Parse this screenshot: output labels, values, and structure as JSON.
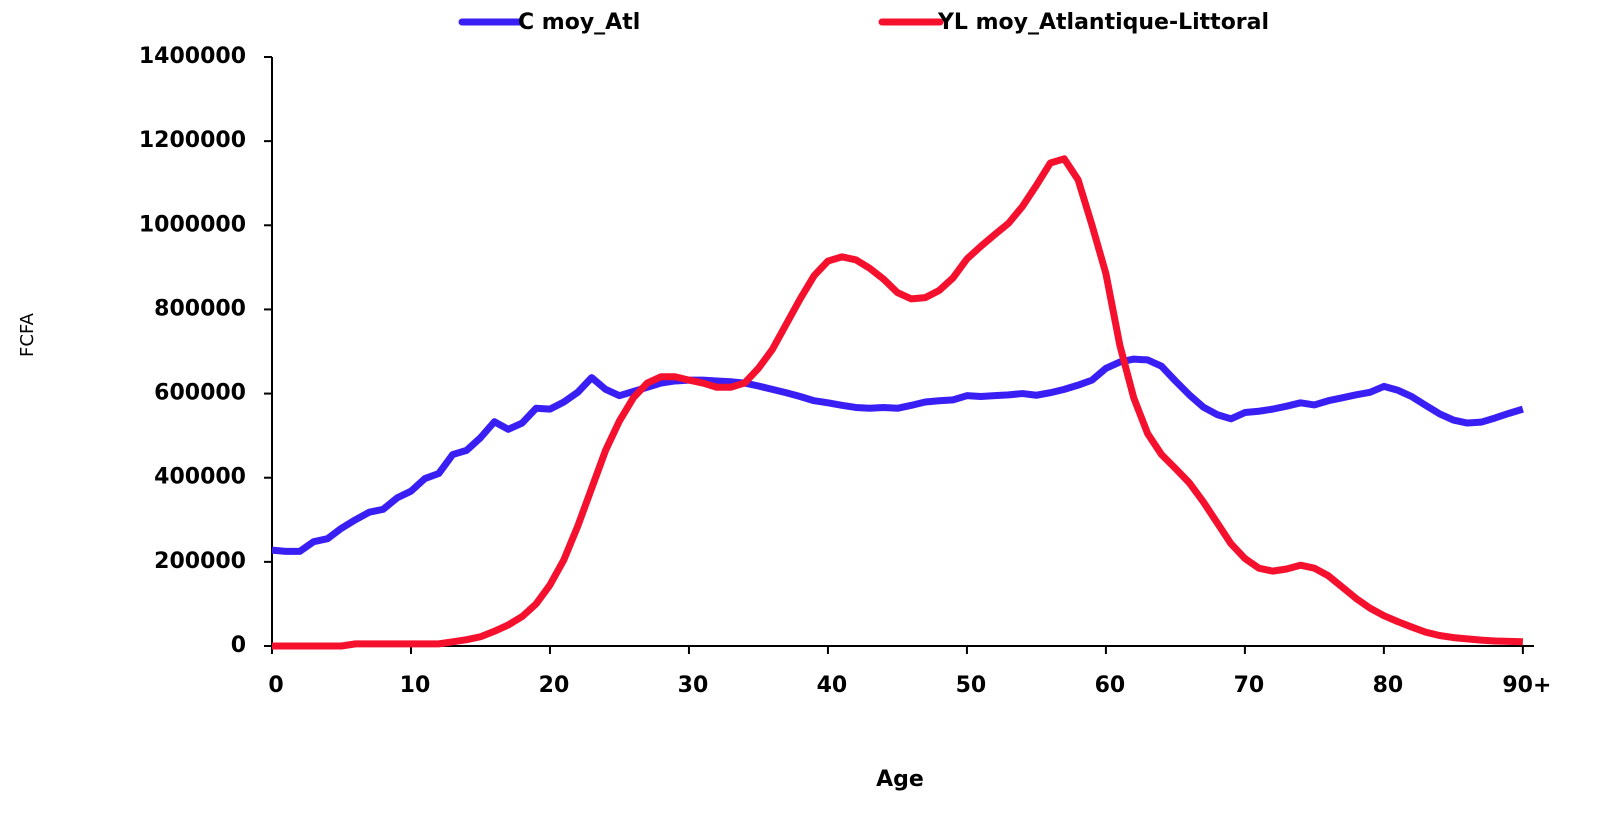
{
  "chart_data": {
    "type": "line",
    "xlabel": "Age",
    "ylabel": "FCFA",
    "x": [
      0,
      1,
      2,
      3,
      4,
      5,
      6,
      7,
      8,
      9,
      10,
      11,
      12,
      13,
      14,
      15,
      16,
      17,
      18,
      19,
      20,
      21,
      22,
      23,
      24,
      25,
      26,
      27,
      28,
      29,
      30,
      31,
      32,
      33,
      34,
      35,
      36,
      37,
      38,
      39,
      40,
      41,
      42,
      43,
      44,
      45,
      46,
      47,
      48,
      49,
      50,
      51,
      52,
      53,
      54,
      55,
      56,
      57,
      58,
      59,
      60,
      61,
      62,
      63,
      64,
      65,
      66,
      67,
      68,
      69,
      70,
      71,
      72,
      73,
      74,
      75,
      76,
      77,
      78,
      79,
      80,
      81,
      82,
      83,
      84,
      85,
      86,
      87,
      88,
      89,
      90
    ],
    "series": [
      {
        "name": "C moy_Atl",
        "color": "#3a1ff5",
        "values": [
          228000,
          225000,
          225000,
          248000,
          255000,
          280000,
          300000,
          318000,
          325000,
          352000,
          368000,
          398000,
          410000,
          455000,
          465000,
          495000,
          533000,
          515000,
          530000,
          565000,
          563000,
          580000,
          603000,
          638000,
          610000,
          595000,
          605000,
          615000,
          625000,
          630000,
          632000,
          632000,
          630000,
          628000,
          625000,
          618000,
          610000,
          602000,
          593000,
          583000,
          578000,
          572000,
          567000,
          565000,
          567000,
          565000,
          572000,
          580000,
          583000,
          585000,
          595000,
          593000,
          595000,
          597000,
          600000,
          596000,
          602000,
          610000,
          620000,
          632000,
          660000,
          675000,
          682000,
          680000,
          665000,
          630000,
          597000,
          568000,
          550000,
          540000,
          555000,
          558000,
          563000,
          570000,
          578000,
          573000,
          583000,
          590000,
          597000,
          603000,
          617000,
          608000,
          593000,
          572000,
          552000,
          537000,
          530000,
          532000,
          542000,
          553000,
          563000
        ]
      },
      {
        "name": "YL moy_Atlantique-Littoral",
        "color": "#f5102e",
        "values": [
          0,
          0,
          0,
          0,
          0,
          0,
          5000,
          5000,
          5000,
          5000,
          5000,
          5000,
          5000,
          10000,
          15000,
          22000,
          35000,
          50000,
          70000,
          100000,
          145000,
          205000,
          285000,
          375000,
          465000,
          535000,
          590000,
          625000,
          640000,
          640000,
          632000,
          625000,
          615000,
          615000,
          625000,
          660000,
          705000,
          765000,
          825000,
          880000,
          915000,
          925000,
          918000,
          898000,
          872000,
          840000,
          825000,
          828000,
          845000,
          875000,
          920000,
          950000,
          978000,
          1005000,
          1045000,
          1095000,
          1148000,
          1158000,
          1108000,
          1000000,
          885000,
          715000,
          590000,
          505000,
          455000,
          422000,
          388000,
          343000,
          293000,
          243000,
          208000,
          185000,
          178000,
          183000,
          192000,
          185000,
          167000,
          140000,
          113000,
          90000,
          72000,
          58000,
          45000,
          33000,
          25000,
          20000,
          17000,
          14000,
          12000,
          11000,
          10000
        ]
      }
    ],
    "xlim": [
      0,
      90.8
    ],
    "xticks": [
      0,
      10,
      20,
      30,
      40,
      50,
      60,
      70,
      80,
      {
        "value": 90,
        "label": "90+"
      }
    ],
    "ylim": [
      0,
      1400000
    ],
    "yticks": [
      0,
      200000,
      400000,
      600000,
      800000,
      1000000,
      1200000,
      1400000
    ],
    "legend": "top"
  }
}
